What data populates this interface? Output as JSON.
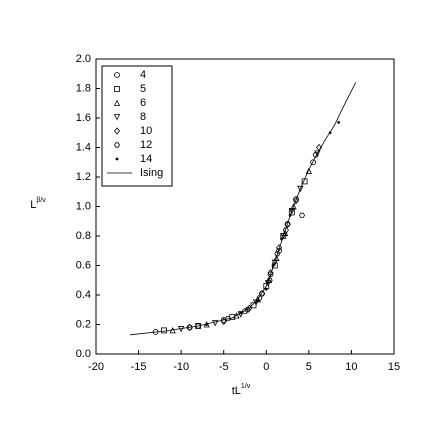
{
  "chart_data": {
    "type": "scatter",
    "xlabel": "tL",
    "xlabel_sup": "1/ν",
    "ylabel": "L",
    "ylabel_sup": "β/ν",
    "xlim": [
      -20,
      15
    ],
    "xticks": [
      -20,
      -15,
      -10,
      -5,
      0,
      5,
      10,
      15
    ],
    "ylim": [
      0,
      2
    ],
    "yticks": [
      {
        "value": 0,
        "label": "0.0"
      },
      0.2,
      0.4,
      0.6,
      0.8,
      {
        "value": 1,
        "label": "1.0"
      },
      1.2,
      1.4,
      1.6,
      1.8,
      {
        "value": 2,
        "label": "2.0"
      }
    ],
    "grid": false,
    "legend": "upper left",
    "series": [
      {
        "name": "4",
        "color": "#000000",
        "marker": "circle",
        "x": [
          -13,
          -9,
          -5,
          -2.5,
          -0.5,
          0.5,
          1.5,
          2.5,
          3.5,
          5.5
        ],
        "values": [
          0.15,
          0.18,
          0.23,
          0.29,
          0.41,
          0.54,
          0.7,
          0.88,
          1.05,
          1.3
        ]
      },
      {
        "name": "5",
        "color": "#000000",
        "marker": "square",
        "x": [
          -12,
          -8,
          -4,
          -1.5,
          0,
          1,
          2,
          3,
          4.5
        ],
        "values": [
          0.16,
          0.19,
          0.25,
          0.33,
          0.46,
          0.6,
          0.8,
          0.96,
          1.17
        ]
      },
      {
        "name": "6",
        "color": "#000000",
        "marker": "triangle-up",
        "x": [
          -11,
          -7,
          -3.5,
          -1,
          0.3,
          1.2,
          2.2,
          3.2,
          5
        ],
        "values": [
          0.16,
          0.2,
          0.26,
          0.37,
          0.5,
          0.65,
          0.82,
          1.0,
          1.24
        ]
      },
      {
        "name": "8",
        "color": "#000000",
        "marker": "triangle-down",
        "x": [
          -10,
          -6,
          -3,
          -1.2,
          0.2,
          1,
          2,
          3,
          4,
          6
        ],
        "values": [
          0.17,
          0.21,
          0.27,
          0.35,
          0.48,
          0.62,
          0.8,
          0.97,
          1.12,
          1.36
        ]
      },
      {
        "name": "10",
        "color": "#000000",
        "marker": "diamond",
        "x": [
          -9,
          -5,
          -2,
          -0.5,
          0.5,
          1.5,
          2.5,
          3.5,
          6.2
        ],
        "values": [
          0.18,
          0.22,
          0.31,
          0.41,
          0.55,
          0.72,
          0.88,
          1.04,
          1.4
        ]
      },
      {
        "name": "12",
        "color": "#000000",
        "marker": "hexagon",
        "x": [
          -8,
          -4.5,
          -2.2,
          -0.8,
          0.4,
          1.3,
          2.3,
          4.2,
          5.8
        ],
        "values": [
          0.19,
          0.24,
          0.3,
          0.38,
          0.5,
          0.68,
          0.84,
          0.94,
          1.35
        ]
      },
      {
        "name": "14",
        "color": "#000000",
        "marker": "dot",
        "x": [
          -7,
          -3,
          -1,
          0,
          0.8,
          1.8,
          2.8,
          7.5,
          8.5
        ],
        "values": [
          0.2,
          0.28,
          0.36,
          0.44,
          0.6,
          0.78,
          0.94,
          1.5,
          1.57
        ]
      },
      {
        "name": "Ising",
        "color": "#000000",
        "marker": "line",
        "x": [
          -16,
          -12,
          -8,
          -4,
          -2,
          -1,
          0,
          1,
          2,
          3,
          4,
          5,
          6,
          7,
          8,
          9,
          10.5
        ],
        "values": [
          0.13,
          0.155,
          0.19,
          0.245,
          0.31,
          0.37,
          0.46,
          0.62,
          0.8,
          0.97,
          1.12,
          1.25,
          1.36,
          1.46,
          1.55,
          1.67,
          1.84
        ]
      }
    ]
  }
}
